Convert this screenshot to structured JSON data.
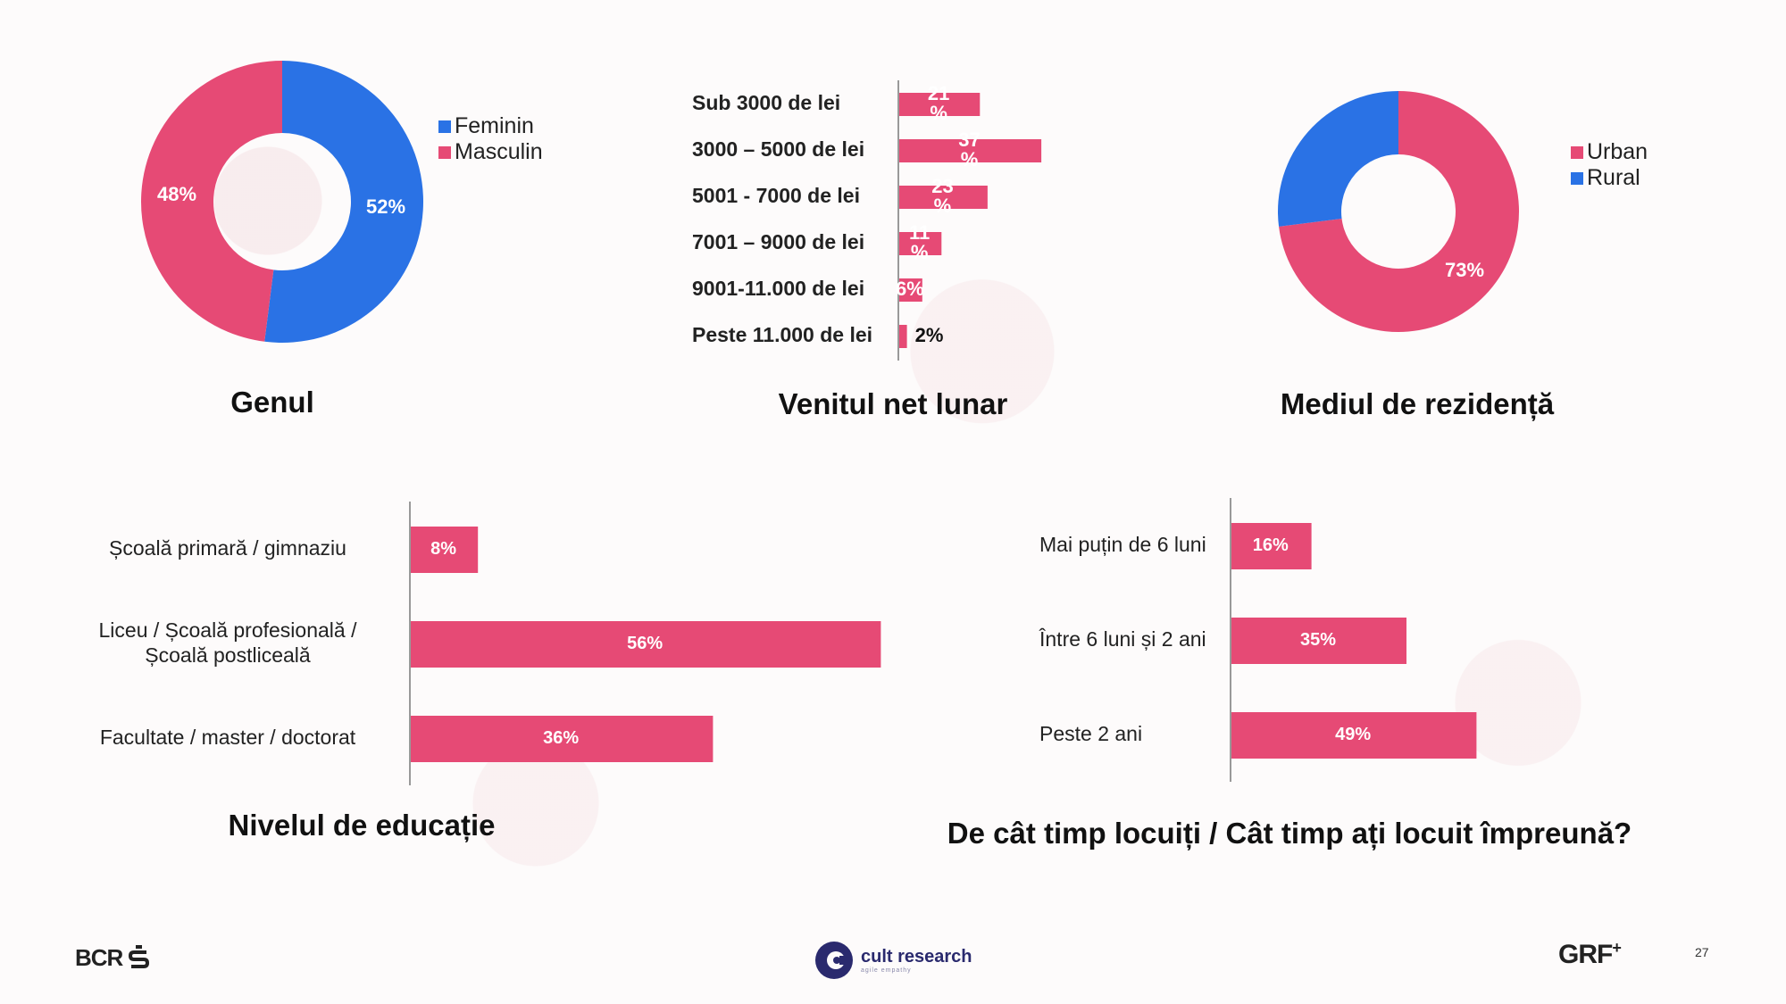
{
  "colors": {
    "blue": "#2a72e5",
    "pink": "#e64a75",
    "axis": "#999999",
    "text": "#111111",
    "inbar": "#ffffff"
  },
  "chart_data": [
    {
      "id": "gen",
      "type": "pie",
      "title": "Genul",
      "slices": [
        {
          "label": "Feminin",
          "value": 52,
          "display": "52%",
          "color": "blue"
        },
        {
          "label": "Masculin",
          "value": 48,
          "display": "48%",
          "color": "pink"
        }
      ],
      "legend": [
        "Feminin",
        "Masculin"
      ],
      "legend_position": "right"
    },
    {
      "id": "venit",
      "type": "bar",
      "orientation": "horizontal",
      "title": "Venitul net lunar",
      "categories": [
        "Sub 3000 de lei",
        "3000 – 5000 de lei",
        "5001 - 7000 de lei",
        "7001 – 9000 de lei",
        "9001-11.000 de lei",
        "Peste 11.000 de lei"
      ],
      "values": [
        21,
        37,
        23,
        11,
        6,
        2
      ],
      "labels": [
        "21\n%",
        "37\n%",
        "23\n%",
        "11\n%",
        "6%",
        "2%"
      ],
      "xlim": [
        0,
        40
      ]
    },
    {
      "id": "mediu",
      "type": "pie",
      "title": "Mediul de rezidență",
      "slices": [
        {
          "label": "Urban",
          "value": 73,
          "display": "73%",
          "color": "pink"
        },
        {
          "label": "Rural",
          "value": 27,
          "display": "",
          "color": "blue"
        }
      ],
      "legend": [
        "Urban",
        "Rural"
      ],
      "legend_position": "right"
    },
    {
      "id": "educatie",
      "type": "bar",
      "orientation": "horizontal",
      "title": "Nivelul de educație",
      "categories": [
        "Școală primară / gimnaziu",
        "Liceu / Școală profesională /\nȘcoală postliceală",
        "Facultate / master / doctorat"
      ],
      "values": [
        8,
        56,
        36
      ],
      "labels": [
        "8%",
        "56%",
        "36%"
      ],
      "xlim": [
        0,
        60
      ]
    },
    {
      "id": "timp",
      "type": "bar",
      "orientation": "horizontal",
      "title": "De cât timp locuiți / Cât timp ați locuit împreună?",
      "categories": [
        "Mai puțin de 6 luni",
        "Între 6 luni și 2 ani",
        "Peste 2 ani"
      ],
      "values": [
        16,
        35,
        49
      ],
      "labels": [
        "16%",
        "35%",
        "49%"
      ],
      "xlim": [
        0,
        60
      ]
    }
  ],
  "footer": {
    "bcr": "BCR",
    "cult_name": "cult research",
    "cult_tagline": "agile empathy",
    "grf": "GRF",
    "page": "27"
  }
}
